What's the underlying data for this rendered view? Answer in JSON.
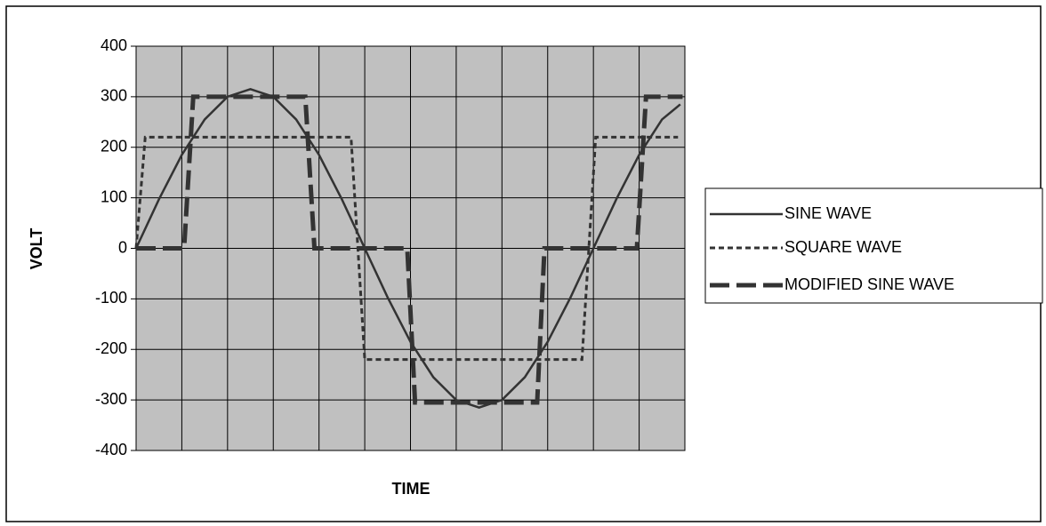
{
  "chart_data": {
    "type": "line",
    "y_label": "VOLT",
    "x_label": "TIME",
    "xlim": [
      0,
      12
    ],
    "ylim": [
      -400,
      400
    ],
    "yticks": [
      -400,
      -300,
      -200,
      -100,
      0,
      100,
      200,
      300,
      400
    ],
    "grid": true,
    "plot_background": "#c0c0c0",
    "legend": "right",
    "series": [
      {
        "name": "SINE WAVE",
        "color": "#333333",
        "line_style": "solid",
        "line_width": 2.5,
        "x": [
          0,
          0.5,
          1,
          1.5,
          2,
          2.5,
          3,
          3.5,
          4,
          4.5,
          5,
          5.5,
          6,
          6.5,
          7,
          7.5,
          8,
          8.5,
          9,
          9.5,
          10,
          10.5,
          11,
          11.5,
          11.9
        ],
        "values": [
          0,
          97,
          185,
          255,
          300,
          315,
          300,
          255,
          185,
          97,
          0,
          -97,
          -185,
          -255,
          -300,
          -315,
          -300,
          -255,
          -185,
          -97,
          0,
          97,
          185,
          255,
          285
        ]
      },
      {
        "name": "SQUARE WAVE",
        "color": "#333333",
        "line_style": "dotted",
        "line_width": 3,
        "x": [
          0,
          0.2,
          4.7,
          5.0,
          9.75,
          10.05,
          11.85
        ],
        "values": [
          0,
          220,
          220,
          -220,
          -220,
          220,
          220
        ]
      },
      {
        "name": "MODIFIED SINE WAVE",
        "color": "#333333",
        "line_style": "dashed",
        "line_width": 5,
        "x": [
          0,
          1.05,
          1.25,
          3.7,
          3.9,
          5.93,
          6.1,
          8.77,
          8.93,
          10.95,
          11.15,
          11.95
        ],
        "values": [
          0,
          0,
          300,
          300,
          0,
          0,
          -305,
          -305,
          0,
          0,
          300,
          300
        ]
      }
    ]
  }
}
